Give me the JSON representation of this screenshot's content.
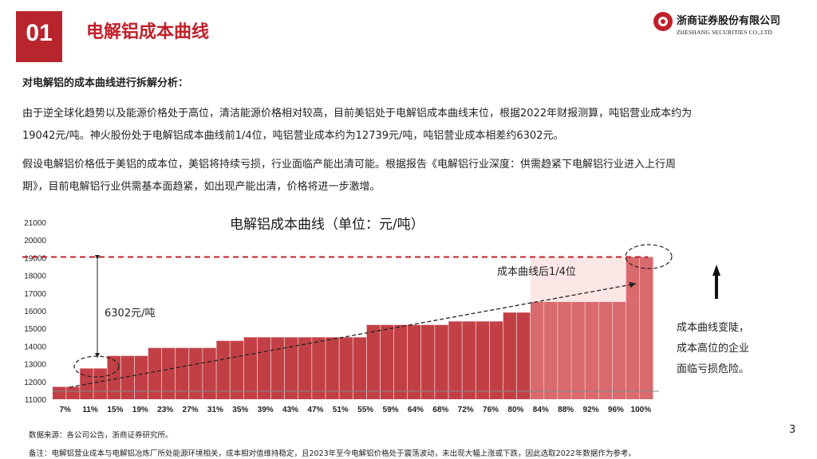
{
  "section": {
    "number": "01",
    "title": "电解铝成本曲线"
  },
  "logo": {
    "cn": "浙商证券股份有限公司",
    "en": "ZHESHANG SECURITIES CO.,LTD"
  },
  "content": {
    "subtitle": "对电解铝的成本曲线进行拆解分析：",
    "para1_line1": "由于逆全球化趋势以及能源价格处于高位，清洁能源价格相对较高，目前美铝处于电解铝成本曲线末位，根据2022年财报测算，吨铝营业成本约为",
    "para1_line2": "19042元/吨。神火股份处于电解铝成本曲线前1/4位，吨铝营业成本约为12739元/吨，吨铝营业成本相差约6302元。",
    "para2_line1": "假设电解铝价格低于美铝的成本位，美铝将持续亏损，行业面临产能出清可能。根据报告《电解铝行业深度：供需趋紧下电解铝行业进入上行周",
    "para2_line2": "期》，目前电解铝行业供需基本面趋紧，如出现产能出清，价格将进一步激增。"
  },
  "chart_data": {
    "type": "bar",
    "title": "电解铝成本曲线（单位：元/吨）",
    "ylim": [
      11000,
      21000
    ],
    "yticks": [
      "11000",
      "12000",
      "13000",
      "14000",
      "15000",
      "16000",
      "17000",
      "18000",
      "19000",
      "20000",
      "21000"
    ],
    "xticks": [
      "7%",
      "11%",
      "15%",
      "19%",
      "23%",
      "27%",
      "31%",
      "35%",
      "39%",
      "43%",
      "47%",
      "51%",
      "55%",
      "59%",
      "64%",
      "68%",
      "72%",
      "76%",
      "80%",
      "84%",
      "88%",
      "92%",
      "96%",
      "100%"
    ],
    "values": [
      11700,
      11700,
      12739,
      12739,
      13450,
      13450,
      13450,
      13900,
      13900,
      13900,
      13900,
      13900,
      14300,
      14300,
      14500,
      14500,
      14500,
      14500,
      14500,
      14500,
      14500,
      14500,
      14500,
      15200,
      15200,
      15200,
      15200,
      15200,
      15200,
      15400,
      15400,
      15400,
      15400,
      15900,
      15900,
      16500,
      16500,
      16500,
      16500,
      16500,
      16500,
      16500,
      19042,
      19042
    ],
    "reference_line": 19042,
    "annotations": {
      "gap_label": "6302元/吨",
      "quartile_label": "成本曲线后1/4位"
    },
    "colors": {
      "bar": "#c24045",
      "bar_highlight": "#d96a6e",
      "ref_line": "#c0202a",
      "shade": "#fce6e6"
    }
  },
  "side_note": {
    "line1": "成本曲线变陡，",
    "line2": "成本高位的企业",
    "line3": "面临亏损危险。"
  },
  "source": "数据来源：各公司公告，浙商证券研究所。",
  "footnote": "备注：电解铝营业成本与电解铝冶炼厂所处能源环境相关，成本相对值维持稳定，且2023年至今电解铝价格处于震荡波动，未出现大幅上涨或下跌，因此选取2022年数据作为参考。",
  "page": "3"
}
